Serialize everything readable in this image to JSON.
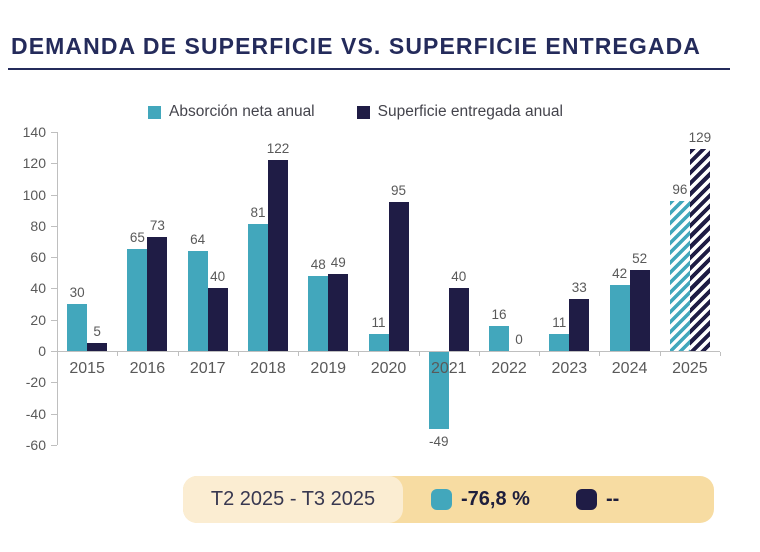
{
  "title": "DEMANDA DE SUPERFICIE VS. SUPERFICIE ENTREGADA",
  "colors": {
    "title": "#242B5B",
    "teal": "#42A7BC",
    "navy": "#1F1C45",
    "axis_text": "#595959",
    "axis_line": "#BFBFBF",
    "badge_bg": "#F7DCA2",
    "badge_period_bg": "#FBEDD2"
  },
  "chart_data": {
    "type": "bar",
    "title": "DEMANDA DE SUPERFICIE VS. SUPERFICIE ENTREGADA",
    "categories": [
      "2015",
      "2016",
      "2017",
      "2018",
      "2019",
      "2020",
      "2021",
      "2022",
      "2023",
      "2024",
      "2025"
    ],
    "series": [
      {
        "name": "Absorción neta anual",
        "color": "#42A7BC",
        "values": [
          30,
          65,
          64,
          81,
          48,
          11,
          -49,
          16,
          11,
          42,
          96
        ]
      },
      {
        "name": "Superficie entregada anual",
        "color": "#1F1C45",
        "values": [
          5,
          73,
          40,
          122,
          49,
          95,
          40,
          0,
          33,
          52,
          129
        ]
      }
    ],
    "hatched_category": "2025",
    "ylim": [
      -60,
      140
    ],
    "ytick_step": 20,
    "xlabel": "",
    "ylabel": "",
    "grid": false,
    "legend_position": "top"
  },
  "footer_badge": {
    "period": "T2 2025 - T3 2025",
    "items": [
      {
        "label": "-76,8 %",
        "color": "#42A7BC"
      },
      {
        "label": "--",
        "color": "#1F1C45"
      }
    ]
  }
}
